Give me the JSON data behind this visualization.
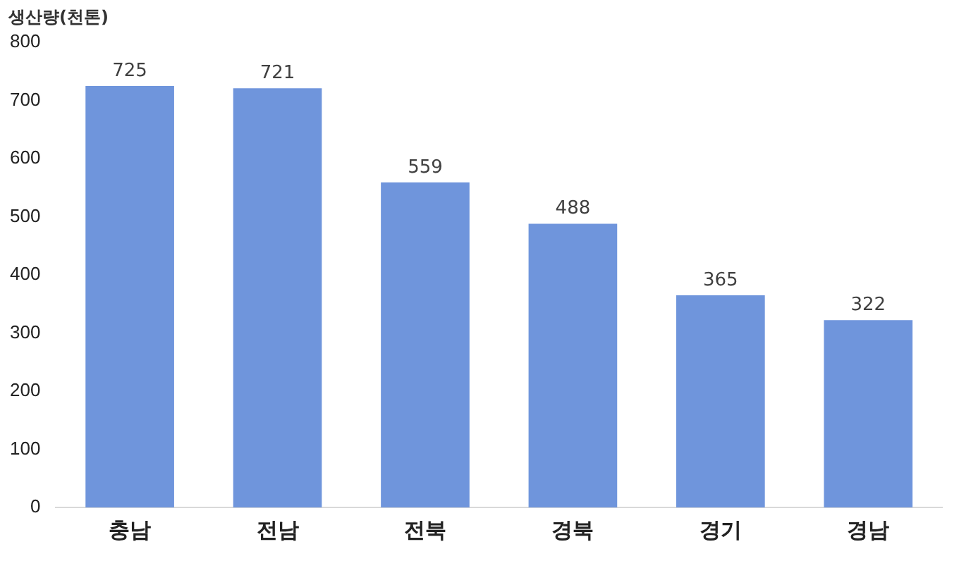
{
  "chart_data": {
    "type": "bar",
    "ylabel": "생산량(천톤)",
    "categories": [
      "충남",
      "전남",
      "전북",
      "경북",
      "경기",
      "경남"
    ],
    "values": [
      725,
      721,
      559,
      488,
      365,
      322
    ],
    "color": "#6f95dc",
    "ylim": [
      0,
      800
    ],
    "yticks": [
      0,
      100,
      200,
      300,
      400,
      500,
      600,
      700,
      800
    ],
    "grid": false,
    "legend": false,
    "data_labels": true
  }
}
